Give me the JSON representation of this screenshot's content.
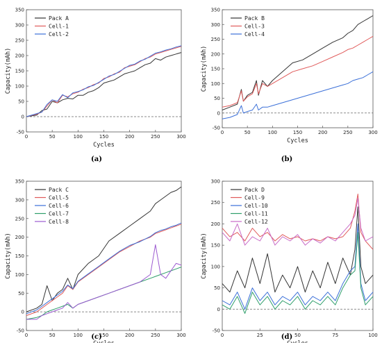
{
  "chart_data": [
    {
      "type": "line",
      "panel_label": "(a)",
      "xlabel": "Cycles",
      "ylabel": "Capacity(mAh)",
      "xlim": [
        0,
        300
      ],
      "ylim": [
        -50,
        350
      ],
      "xticks": [
        "0",
        "50",
        "100",
        "150",
        "200",
        "250",
        "300"
      ],
      "yticks": [
        "-50",
        "0",
        "50",
        "100",
        "150",
        "200",
        "250",
        "300",
        "350"
      ],
      "legend_position": "top-left",
      "zero_line": true,
      "series": [
        {
          "name": "Pack A",
          "color": "#333333",
          "x": [
            0,
            20,
            30,
            40,
            50,
            60,
            70,
            80,
            90,
            100,
            110,
            120,
            130,
            140,
            150,
            160,
            170,
            180,
            190,
            200,
            210,
            220,
            230,
            240,
            250,
            260,
            270,
            280,
            290,
            300
          ],
          "values": [
            0,
            5,
            20,
            25,
            50,
            45,
            55,
            60,
            58,
            70,
            70,
            80,
            85,
            95,
            110,
            115,
            120,
            130,
            140,
            145,
            150,
            160,
            170,
            175,
            190,
            185,
            195,
            200,
            205,
            210
          ]
        },
        {
          "name": "Cell-1",
          "color": "#e05a5a",
          "x": [
            0,
            20,
            30,
            40,
            50,
            60,
            70,
            80,
            90,
            100,
            110,
            120,
            130,
            140,
            150,
            160,
            170,
            180,
            190,
            200,
            210,
            220,
            230,
            240,
            250,
            260,
            270,
            280,
            290,
            300
          ],
          "values": [
            0,
            8,
            15,
            35,
            55,
            45,
            70,
            65,
            75,
            80,
            90,
            95,
            105,
            110,
            125,
            130,
            140,
            145,
            160,
            165,
            170,
            180,
            190,
            195,
            205,
            210,
            215,
            220,
            225,
            230
          ]
        },
        {
          "name": "Cell-2",
          "color": "#3a6fd8",
          "x": [
            0,
            20,
            30,
            40,
            50,
            60,
            70,
            80,
            90,
            100,
            110,
            120,
            130,
            140,
            150,
            160,
            170,
            180,
            190,
            200,
            210,
            220,
            230,
            240,
            250,
            260,
            270,
            280,
            290,
            300
          ],
          "values": [
            0,
            10,
            15,
            40,
            55,
            50,
            72,
            62,
            78,
            82,
            88,
            98,
            102,
            112,
            122,
            133,
            138,
            148,
            158,
            168,
            172,
            182,
            188,
            198,
            208,
            212,
            218,
            222,
            228,
            232
          ]
        }
      ]
    },
    {
      "type": "line",
      "panel_label": "(b)",
      "xlabel": "Cycles",
      "ylabel": "Capacity(mAh)",
      "xlim": [
        0,
        300
      ],
      "ylim": [
        -50,
        350
      ],
      "xticks": [
        "0",
        "50",
        "100",
        "150",
        "200",
        "250",
        "300"
      ],
      "yticks": [
        "-50",
        "0",
        "50",
        "100",
        "150",
        "200",
        "250",
        "300",
        "350"
      ],
      "legend_position": "top-left",
      "zero_line": true,
      "series": [
        {
          "name": "Pack B",
          "color": "#333333",
          "x": [
            0,
            15,
            30,
            38,
            42,
            50,
            60,
            68,
            72,
            80,
            90,
            100,
            120,
            140,
            160,
            180,
            200,
            220,
            240,
            250,
            260,
            270,
            280,
            290,
            300
          ],
          "values": [
            10,
            20,
            30,
            80,
            40,
            60,
            70,
            110,
            60,
            110,
            90,
            110,
            140,
            170,
            180,
            200,
            220,
            240,
            255,
            270,
            280,
            300,
            310,
            320,
            330
          ]
        },
        {
          "name": "Cell-3",
          "color": "#e05a5a",
          "x": [
            0,
            15,
            30,
            38,
            42,
            50,
            60,
            68,
            72,
            80,
            90,
            100,
            120,
            140,
            160,
            180,
            200,
            220,
            240,
            250,
            260,
            270,
            280,
            290,
            300
          ],
          "values": [
            20,
            25,
            35,
            75,
            40,
            55,
            65,
            100,
            65,
            100,
            90,
            100,
            120,
            140,
            150,
            160,
            175,
            190,
            205,
            215,
            220,
            230,
            240,
            250,
            260
          ]
        },
        {
          "name": "Cell-4",
          "color": "#3a6fd8",
          "x": [
            0,
            15,
            30,
            38,
            42,
            50,
            60,
            68,
            72,
            80,
            90,
            100,
            120,
            140,
            160,
            180,
            200,
            220,
            240,
            250,
            260,
            270,
            280,
            290,
            300
          ],
          "values": [
            -20,
            -15,
            -5,
            25,
            0,
            5,
            10,
            30,
            10,
            20,
            20,
            25,
            35,
            45,
            55,
            65,
            75,
            85,
            95,
            100,
            110,
            115,
            120,
            130,
            140
          ]
        }
      ]
    },
    {
      "type": "line",
      "panel_label": "(c)",
      "xlabel": "Cycles",
      "ylabel": "Capacity(mAh)",
      "xlim": [
        0,
        300
      ],
      "ylim": [
        -50,
        350
      ],
      "xticks": [
        "0",
        "50",
        "100",
        "150",
        "200",
        "250",
        "300"
      ],
      "yticks": [
        "-50",
        "0",
        "50",
        "100",
        "150",
        "200",
        "250",
        "300",
        "350"
      ],
      "legend_position": "top-left",
      "zero_line": true,
      "series": [
        {
          "name": "Pack C",
          "color": "#333333",
          "x": [
            0,
            20,
            30,
            40,
            50,
            60,
            70,
            80,
            90,
            100,
            120,
            140,
            160,
            180,
            200,
            220,
            240,
            250,
            260,
            270,
            280,
            290,
            300
          ],
          "values": [
            0,
            10,
            20,
            70,
            30,
            50,
            60,
            90,
            60,
            100,
            130,
            150,
            190,
            210,
            230,
            250,
            270,
            290,
            300,
            310,
            320,
            325,
            335
          ]
        },
        {
          "name": "Cell-5",
          "color": "#e05a5a",
          "x": [
            0,
            20,
            30,
            40,
            50,
            60,
            70,
            80,
            90,
            100,
            120,
            140,
            160,
            180,
            200,
            220,
            240,
            250,
            260,
            270,
            280,
            290,
            300
          ],
          "values": [
            -10,
            0,
            10,
            20,
            30,
            40,
            50,
            70,
            60,
            80,
            100,
            120,
            140,
            160,
            175,
            190,
            200,
            210,
            215,
            220,
            225,
            230,
            235
          ]
        },
        {
          "name": "Cell-6",
          "color": "#3a6fd8",
          "x": [
            0,
            20,
            30,
            40,
            50,
            60,
            70,
            80,
            90,
            100,
            120,
            140,
            160,
            180,
            200,
            220,
            240,
            250,
            260,
            270,
            280,
            290,
            300
          ],
          "values": [
            -5,
            5,
            15,
            25,
            35,
            45,
            55,
            72,
            62,
            82,
            102,
            122,
            142,
            162,
            178,
            188,
            202,
            212,
            218,
            222,
            228,
            232,
            238
          ]
        },
        {
          "name": "Cell-7",
          "color": "#2e9e6a",
          "x": [
            0,
            20,
            30,
            40,
            50,
            60,
            70,
            80,
            90,
            100,
            120,
            140,
            160,
            180,
            200,
            220,
            240,
            250,
            260,
            270,
            280,
            290,
            300
          ],
          "values": [
            -20,
            -15,
            -10,
            0,
            5,
            10,
            15,
            20,
            10,
            20,
            30,
            40,
            50,
            60,
            70,
            80,
            90,
            95,
            100,
            105,
            110,
            115,
            120
          ]
        },
        {
          "name": "Cell-8",
          "color": "#9b59d0",
          "x": [
            0,
            20,
            30,
            40,
            50,
            60,
            70,
            80,
            90,
            100,
            120,
            140,
            160,
            180,
            200,
            220,
            240,
            250,
            260,
            270,
            280,
            290,
            300
          ],
          "values": [
            -20,
            -20,
            -10,
            -5,
            0,
            5,
            10,
            25,
            10,
            20,
            30,
            40,
            50,
            60,
            70,
            80,
            100,
            180,
            100,
            90,
            110,
            130,
            125
          ]
        }
      ]
    },
    {
      "type": "line",
      "panel_label": "(d)",
      "xlabel": "Cycles",
      "ylabel": "Capacity(mAh)",
      "xlim": [
        0,
        100
      ],
      "ylim": [
        -50,
        300
      ],
      "xticks": [
        "0",
        "25",
        "50",
        "75",
        "100"
      ],
      "yticks": [
        "-50",
        "0",
        "50",
        "100",
        "150",
        "200",
        "250",
        "300"
      ],
      "legend_position": "top-left",
      "zero_line": true,
      "series": [
        {
          "name": "Pack D",
          "color": "#333333",
          "x": [
            0,
            5,
            10,
            15,
            20,
            25,
            30,
            35,
            40,
            45,
            50,
            55,
            60,
            65,
            70,
            75,
            80,
            85,
            88,
            90,
            92,
            95,
            100
          ],
          "values": [
            60,
            40,
            90,
            50,
            120,
            60,
            130,
            40,
            80,
            50,
            100,
            40,
            90,
            50,
            110,
            60,
            120,
            80,
            140,
            240,
            100,
            60,
            80
          ]
        },
        {
          "name": "Cell-9",
          "color": "#e05a5a",
          "x": [
            0,
            5,
            10,
            15,
            20,
            25,
            30,
            35,
            40,
            45,
            50,
            55,
            60,
            65,
            70,
            75,
            80,
            85,
            88,
            90,
            92,
            95,
            100
          ],
          "values": [
            190,
            170,
            180,
            160,
            190,
            170,
            180,
            160,
            175,
            165,
            170,
            160,
            165,
            160,
            170,
            165,
            170,
            190,
            230,
            270,
            180,
            160,
            140
          ]
        },
        {
          "name": "Cell-10",
          "color": "#3a6fd8",
          "x": [
            0,
            5,
            10,
            15,
            20,
            25,
            30,
            35,
            40,
            45,
            50,
            55,
            60,
            65,
            70,
            75,
            80,
            85,
            88,
            90,
            92,
            95,
            100
          ],
          "values": [
            20,
            10,
            40,
            0,
            50,
            20,
            40,
            10,
            30,
            20,
            40,
            10,
            30,
            20,
            40,
            20,
            60,
            90,
            100,
            200,
            60,
            20,
            40
          ]
        },
        {
          "name": "Cell-11",
          "color": "#2e9e6a",
          "x": [
            0,
            5,
            10,
            15,
            20,
            25,
            30,
            35,
            40,
            45,
            50,
            55,
            60,
            65,
            70,
            75,
            80,
            85,
            88,
            90,
            92,
            95,
            100
          ],
          "values": [
            10,
            0,
            30,
            -10,
            40,
            10,
            30,
            0,
            20,
            10,
            30,
            0,
            20,
            10,
            30,
            10,
            50,
            80,
            90,
            180,
            50,
            10,
            30
          ]
        },
        {
          "name": "Cell-12",
          "color": "#c86cc8",
          "x": [
            0,
            5,
            10,
            15,
            20,
            25,
            30,
            35,
            40,
            45,
            50,
            55,
            60,
            65,
            70,
            75,
            80,
            85,
            88,
            90,
            92,
            95,
            100
          ],
          "values": [
            180,
            160,
            200,
            150,
            170,
            160,
            190,
            150,
            170,
            160,
            175,
            150,
            165,
            155,
            170,
            160,
            180,
            200,
            220,
            260,
            190,
            160,
            170
          ]
        }
      ]
    }
  ]
}
